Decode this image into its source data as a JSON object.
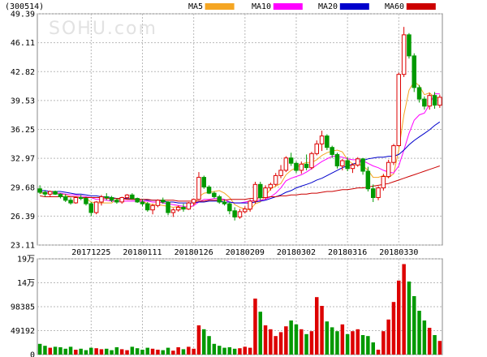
{
  "header": {
    "code": "(300514)",
    "legend": [
      {
        "label": "MA5",
        "color": "#f5a623"
      },
      {
        "label": "MA10",
        "color": "#ff00ff"
      },
      {
        "label": "MA20",
        "color": "#0000cc"
      },
      {
        "label": "MA60",
        "color": "#cc0000"
      }
    ]
  },
  "watermark": "SOHU.com",
  "colors": {
    "up": "#dd0000",
    "down": "#009900",
    "grid": "#b9b9b9"
  },
  "chart_data": {
    "type": "candlestick",
    "price_axis": {
      "ticks": [
        "49.39",
        "46.11",
        "42.82",
        "39.53",
        "36.25",
        "32.97",
        "29.68",
        "26.39",
        "23.11"
      ],
      "ylim": [
        23.11,
        49.39
      ]
    },
    "volume_axis": {
      "ticks": [
        "19万",
        "14万",
        "98385",
        "49192",
        "0"
      ],
      "ylim": [
        0,
        196770
      ]
    },
    "date_labels": [
      "20171225",
      "20180111",
      "20180126",
      "20180209",
      "20180302",
      "20180316",
      "20180330"
    ],
    "date_label_candle_index": [
      10,
      20,
      30,
      40,
      50,
      60,
      70
    ],
    "candles": [
      [
        29.5,
        29.9,
        28.9,
        29.1
      ],
      [
        29.1,
        29.3,
        28.6,
        28.9
      ],
      [
        28.9,
        29.3,
        28.6,
        29.2
      ],
      [
        29.2,
        29.3,
        28.8,
        28.9
      ],
      [
        28.9,
        29.0,
        28.4,
        28.6
      ],
      [
        28.6,
        28.9,
        28.0,
        28.2
      ],
      [
        28.2,
        28.5,
        27.7,
        27.9
      ],
      [
        27.9,
        28.6,
        27.8,
        28.5
      ],
      [
        28.5,
        28.8,
        28.2,
        28.4
      ],
      [
        28.4,
        28.6,
        27.6,
        27.8
      ],
      [
        27.8,
        28.0,
        26.4,
        26.8
      ],
      [
        26.8,
        28.1,
        26.6,
        28.0
      ],
      [
        28.0,
        28.8,
        27.6,
        28.6
      ],
      [
        28.6,
        29.0,
        28.2,
        28.5
      ],
      [
        28.5,
        28.7,
        28.0,
        28.2
      ],
      [
        28.2,
        28.4,
        27.8,
        28.0
      ],
      [
        28.0,
        28.6,
        27.8,
        28.5
      ],
      [
        28.5,
        28.9,
        28.3,
        28.8
      ],
      [
        28.8,
        29.0,
        28.3,
        28.4
      ],
      [
        28.4,
        28.5,
        27.9,
        28.0
      ],
      [
        28.0,
        28.3,
        27.5,
        27.8
      ],
      [
        27.8,
        28.0,
        26.9,
        27.1
      ],
      [
        27.1,
        27.8,
        26.6,
        27.6
      ],
      [
        27.6,
        28.3,
        27.4,
        28.2
      ],
      [
        28.2,
        28.5,
        27.8,
        28.0
      ],
      [
        28.0,
        28.1,
        26.5,
        26.8
      ],
      [
        26.8,
        27.3,
        26.3,
        27.1
      ],
      [
        27.1,
        27.6,
        26.9,
        27.4
      ],
      [
        27.4,
        27.8,
        26.9,
        27.2
      ],
      [
        27.2,
        28.0,
        27.1,
        27.9
      ],
      [
        27.9,
        28.4,
        27.6,
        28.3
      ],
      [
        28.3,
        31.4,
        28.2,
        30.8
      ],
      [
        30.8,
        31.0,
        29.5,
        29.7
      ],
      [
        29.7,
        29.9,
        28.9,
        29.0
      ],
      [
        29.0,
        29.2,
        28.4,
        28.6
      ],
      [
        28.6,
        28.8,
        27.8,
        28.0
      ],
      [
        28.0,
        28.3,
        27.6,
        27.8
      ],
      [
        27.8,
        28.0,
        26.6,
        27.0
      ],
      [
        27.0,
        27.4,
        25.9,
        26.3
      ],
      [
        26.3,
        27.2,
        26.1,
        26.9
      ],
      [
        26.9,
        27.5,
        26.7,
        27.2
      ],
      [
        27.2,
        28.3,
        26.9,
        28.1
      ],
      [
        28.1,
        30.3,
        27.8,
        30.0
      ],
      [
        30.0,
        30.3,
        28.2,
        28.5
      ],
      [
        28.5,
        29.9,
        28.3,
        29.6
      ],
      [
        29.6,
        30.2,
        29.3,
        30.0
      ],
      [
        30.0,
        31.3,
        29.8,
        31.0
      ],
      [
        31.0,
        32.2,
        30.7,
        31.6
      ],
      [
        31.6,
        33.2,
        31.4,
        33.0
      ],
      [
        33.0,
        33.6,
        32.1,
        32.4
      ],
      [
        32.4,
        32.6,
        31.3,
        31.6
      ],
      [
        31.6,
        32.6,
        31.2,
        32.3
      ],
      [
        32.3,
        33.4,
        31.6,
        31.9
      ],
      [
        31.9,
        33.7,
        31.7,
        33.5
      ],
      [
        33.5,
        35.0,
        33.3,
        34.6
      ],
      [
        34.6,
        36.1,
        33.8,
        35.5
      ],
      [
        35.5,
        35.7,
        33.9,
        34.2
      ],
      [
        34.2,
        34.4,
        33.0,
        33.4
      ],
      [
        33.4,
        33.6,
        31.8,
        32.1
      ],
      [
        32.1,
        32.9,
        31.6,
        32.7
      ],
      [
        32.7,
        33.1,
        31.5,
        31.8
      ],
      [
        31.8,
        32.4,
        31.3,
        32.2
      ],
      [
        32.2,
        33.1,
        32.0,
        32.9
      ],
      [
        32.9,
        33.0,
        31.1,
        31.5
      ],
      [
        31.5,
        32.0,
        29.2,
        29.5
      ],
      [
        29.5,
        30.0,
        28.0,
        28.5
      ],
      [
        28.5,
        29.8,
        28.2,
        29.6
      ],
      [
        29.6,
        31.2,
        29.3,
        30.9
      ],
      [
        30.9,
        32.8,
        30.7,
        32.5
      ],
      [
        32.5,
        34.6,
        32.2,
        34.4
      ],
      [
        34.4,
        42.7,
        34.3,
        42.5
      ],
      [
        42.5,
        47.9,
        42.2,
        47.0
      ],
      [
        47.0,
        47.2,
        44.3,
        44.6
      ],
      [
        44.6,
        44.9,
        40.5,
        41.0
      ],
      [
        41.0,
        41.3,
        39.3,
        39.7
      ],
      [
        39.7,
        40.0,
        38.5,
        38.9
      ],
      [
        38.9,
        40.4,
        38.5,
        40.1
      ],
      [
        40.1,
        40.5,
        38.6,
        39.0
      ],
      [
        39.0,
        40.2,
        38.7,
        39.9
      ]
    ],
    "ma5": [
      29.0,
      29.0,
      29.0,
      29.0,
      28.9,
      28.8,
      28.6,
      28.6,
      28.5,
      28.4,
      28.0,
      27.9,
      27.9,
      27.9,
      27.9,
      28.3,
      28.4,
      28.4,
      28.4,
      28.3,
      28.1,
      27.8,
      27.7,
      27.7,
      27.6,
      27.5,
      27.4,
      27.5,
      27.3,
      27.3,
      27.6,
      28.6,
      29.0,
      29.1,
      29.2,
      29.3,
      29.0,
      28.5,
      27.7,
      27.4,
      27.2,
      27.1,
      27.8,
      28.0,
      28.7,
      29.5,
      29.8,
      30.1,
      31.1,
      31.6,
      31.9,
      32.3,
      32.5,
      32.5,
      32.8,
      33.3,
      33.6,
      33.8,
      33.9,
      33.7,
      32.8,
      32.3,
      32.3,
      32.1,
      31.6,
      30.8,
      30.8,
      31.0,
      30.8,
      31.2,
      33.9,
      37.9,
      40.7,
      41.7,
      41.2,
      40.2,
      40.4,
      39.9,
      39.8
    ],
    "ma10": [
      29.1,
      29.1,
      29.0,
      29.0,
      29.0,
      28.9,
      28.8,
      28.8,
      28.7,
      28.6,
      28.5,
      28.3,
      28.3,
      28.2,
      28.1,
      28.1,
      28.1,
      28.1,
      28.1,
      28.1,
      28.1,
      28.1,
      28.0,
      28.0,
      27.9,
      27.8,
      27.7,
      27.6,
      27.5,
      27.4,
      27.6,
      28.0,
      28.3,
      28.3,
      28.4,
      28.4,
      28.3,
      28.0,
      27.9,
      27.9,
      28.0,
      28.1,
      28.2,
      28.2,
      28.3,
      28.6,
      29.0,
      29.6,
      30.4,
      30.7,
      30.9,
      31.1,
      31.4,
      31.8,
      32.2,
      32.6,
      32.9,
      33.2,
      33.2,
      33.1,
      32.9,
      32.8,
      32.8,
      32.7,
      32.4,
      32.1,
      31.9,
      31.6,
      31.4,
      31.3,
      32.1,
      33.9,
      35.8,
      37.3,
      37.9,
      38.1,
      39.1,
      40.3,
      40.3
    ],
    "ma20": [
      29.3,
      29.3,
      29.2,
      29.2,
      29.2,
      29.1,
      29.0,
      28.9,
      28.9,
      28.8,
      28.7,
      28.7,
      28.6,
      28.6,
      28.5,
      28.4,
      28.4,
      28.4,
      28.3,
      28.3,
      28.3,
      28.2,
      28.2,
      28.2,
      28.1,
      28.0,
      28.0,
      27.9,
      27.9,
      27.9,
      27.9,
      28.0,
      28.0,
      28.1,
      28.1,
      28.1,
      28.0,
      28.0,
      27.9,
      27.9,
      27.9,
      27.9,
      28.0,
      28.1,
      28.2,
      28.4,
      28.6,
      28.8,
      29.1,
      29.3,
      29.6,
      29.8,
      30.0,
      30.2,
      30.5,
      30.7,
      31.0,
      31.3,
      31.6,
      31.9,
      32.1,
      32.3,
      32.5,
      32.7,
      32.9,
      33.0,
      33.1,
      33.1,
      33.2,
      33.2,
      33.4,
      33.9,
      34.5,
      35.0,
      35.4,
      35.8,
      36.2,
      36.7,
      37.1
    ],
    "ma60": [
      28.7,
      28.6,
      28.6,
      28.6,
      28.6,
      28.6,
      28.6,
      28.6,
      28.5,
      28.5,
      28.5,
      28.5,
      28.5,
      28.4,
      28.4,
      28.4,
      28.4,
      28.3,
      28.3,
      28.3,
      28.3,
      28.3,
      28.2,
      28.2,
      28.2,
      28.2,
      28.2,
      28.1,
      28.1,
      28.1,
      28.1,
      28.1,
      28.1,
      28.2,
      28.2,
      28.2,
      28.2,
      28.3,
      28.3,
      28.3,
      28.3,
      28.4,
      28.4,
      28.5,
      28.5,
      28.6,
      28.6,
      28.7,
      28.7,
      28.8,
      28.8,
      28.9,
      28.9,
      29.0,
      29.0,
      29.1,
      29.2,
      29.2,
      29.3,
      29.4,
      29.4,
      29.5,
      29.6,
      29.6,
      29.7,
      29.8,
      29.9,
      30.0,
      30.1,
      30.3,
      30.5,
      30.7,
      30.9,
      31.1,
      31.3,
      31.5,
      31.7,
      31.9,
      32.1
    ],
    "volumes": [
      22000,
      18000,
      14000,
      16000,
      15000,
      12000,
      16000,
      10000,
      12000,
      9000,
      14000,
      13000,
      11000,
      12000,
      9000,
      15000,
      11000,
      9000,
      16000,
      13000,
      10000,
      14000,
      12000,
      10000,
      9000,
      14000,
      8000,
      15000,
      11000,
      16000,
      12000,
      60000,
      52000,
      38000,
      22000,
      18000,
      14000,
      15000,
      12000,
      13000,
      16000,
      14000,
      115000,
      88000,
      60000,
      52000,
      38000,
      46000,
      58000,
      70000,
      62000,
      52000,
      42000,
      48000,
      118000,
      100000,
      68000,
      56000,
      48000,
      62000,
      42000,
      48000,
      52000,
      40000,
      38000,
      25000,
      10000,
      48000,
      72000,
      108000,
      152000,
      186000,
      150000,
      120000,
      90000,
      70000,
      55000,
      40000,
      28000
    ]
  }
}
